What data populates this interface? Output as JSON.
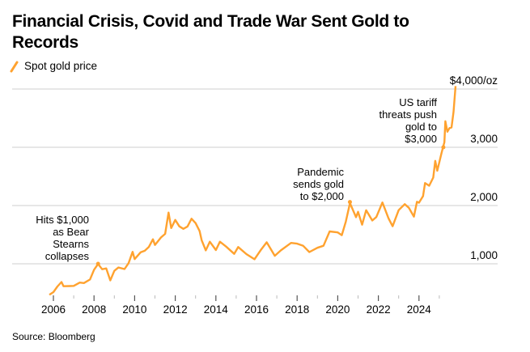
{
  "chart_data": {
    "type": "line",
    "title": "Financial Crisis, Covid and Trade War Sent Gold to Records",
    "title_lines": [
      "Financial Crisis, Covid and Trade War Sent Gold to",
      "Records"
    ],
    "source": "Source: Bloomberg",
    "legend": {
      "position": "top-left",
      "entries": [
        "Spot gold price"
      ]
    },
    "series": [
      {
        "name": "Spot gold price",
        "color": "#FFA22F",
        "x": [
          2005.8,
          2006.0,
          2006.2,
          2006.4,
          2006.5,
          2006.8,
          2007.0,
          2007.3,
          2007.5,
          2007.8,
          2008.0,
          2008.2,
          2008.4,
          2008.6,
          2008.8,
          2009.0,
          2009.2,
          2009.5,
          2009.7,
          2009.9,
          2010.0,
          2010.3,
          2010.5,
          2010.7,
          2010.9,
          2011.0,
          2011.3,
          2011.5,
          2011.67,
          2011.8,
          2012.0,
          2012.2,
          2012.4,
          2012.6,
          2012.8,
          2013.0,
          2013.2,
          2013.3,
          2013.5,
          2013.7,
          2014.0,
          2014.2,
          2014.5,
          2014.9,
          2015.1,
          2015.5,
          2015.9,
          2016.2,
          2016.5,
          2016.9,
          2017.2,
          2017.7,
          2018.0,
          2018.3,
          2018.6,
          2019.0,
          2019.3,
          2019.6,
          2020.0,
          2020.2,
          2020.4,
          2020.6,
          2020.9,
          2021.0,
          2021.2,
          2021.4,
          2021.7,
          2021.9,
          2022.2,
          2022.5,
          2022.7,
          2023.0,
          2023.3,
          2023.5,
          2023.75,
          2023.9,
          2024.0,
          2024.2,
          2024.3,
          2024.5,
          2024.7,
          2024.8,
          2024.9,
          2025.1,
          2025.2,
          2025.25,
          2025.3,
          2025.4,
          2025.5,
          2025.6,
          2025.7,
          2025.8
        ],
        "values": [
          470,
          530,
          590,
          700,
          620,
          600,
          640,
          670,
          660,
          750,
          880,
          1000,
          920,
          900,
          730,
          880,
          920,
          930,
          1000,
          1200,
          1100,
          1180,
          1230,
          1300,
          1400,
          1340,
          1450,
          1500,
          1900,
          1600,
          1750,
          1660,
          1580,
          1650,
          1780,
          1680,
          1580,
          1400,
          1220,
          1400,
          1220,
          1380,
          1310,
          1150,
          1300,
          1170,
          1060,
          1250,
          1360,
          1130,
          1250,
          1340,
          1350,
          1320,
          1180,
          1290,
          1310,
          1540,
          1560,
          1480,
          1720,
          2060,
          1780,
          1900,
          1680,
          1900,
          1760,
          1800,
          2040,
          1800,
          1630,
          1920,
          2040,
          1940,
          1820,
          2070,
          2030,
          2180,
          2380,
          2330,
          2500,
          2750,
          2600,
          2900,
          3000,
          3100,
          3450,
          3250,
          3350,
          3330,
          3600,
          4050
        ]
      }
    ],
    "highlight_points": [
      {
        "x": 2008.2,
        "value": 1000
      },
      {
        "x": 2020.6,
        "value": 2060
      },
      {
        "x": 2025.2,
        "value": 3000
      }
    ],
    "annotations": [
      {
        "lines": [
          "Hits $1,000",
          "as Bear",
          "Stearns",
          "collapses"
        ]
      },
      {
        "lines": [
          "Pandemic",
          "sends gold",
          "to $2,000"
        ]
      },
      {
        "lines": [
          "US tariff",
          "threats push",
          "gold to",
          "$3,000"
        ]
      }
    ],
    "yaxis": {
      "ticks": [
        1000,
        2000,
        3000,
        4000
      ],
      "tick_labels": [
        "1,000",
        "2,000",
        "3,000",
        "$4,000/oz"
      ],
      "position": "right",
      "grid": true
    },
    "xaxis": {
      "ticks": [
        2006,
        2008,
        2010,
        2012,
        2014,
        2016,
        2018,
        2020,
        2022,
        2024
      ],
      "tick_labels": [
        "2006",
        "2008",
        "2010",
        "2012",
        "2014",
        "2016",
        "2018",
        "2020",
        "2022",
        "2024"
      ],
      "minor_ticks": [
        2007,
        2009,
        2011,
        2013,
        2015,
        2017,
        2019,
        2021,
        2023,
        2025
      ]
    },
    "xlim": [
      2005.8,
      2025.8
    ],
    "ylim": [
      460,
      4100
    ]
  }
}
